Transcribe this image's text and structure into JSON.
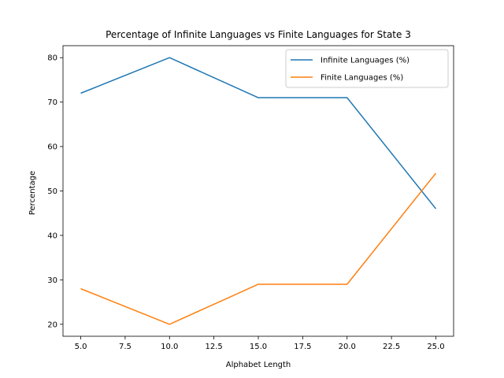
{
  "chart_data": {
    "type": "line",
    "title": "Percentage of Infinite Languages vs Finite Languages for State 3",
    "xlabel": "Alphabet Length",
    "ylabel": "Percentage",
    "x": [
      5,
      10,
      15,
      20,
      25
    ],
    "xlim": [
      4.0,
      26.0
    ],
    "ylim": [
      17.3,
      82.7
    ],
    "xticks": [
      5.0,
      7.5,
      10.0,
      12.5,
      15.0,
      17.5,
      20.0,
      22.5,
      25.0
    ],
    "yticks": [
      20,
      30,
      40,
      50,
      60,
      70,
      80
    ],
    "grid": false,
    "legend_position": "upper right",
    "series": [
      {
        "name": "Infinite Languages (%)",
        "color": "#1f77b4",
        "values": [
          72,
          80,
          71,
          71,
          46
        ]
      },
      {
        "name": "Finite Languages (%)",
        "color": "#ff7f0e",
        "values": [
          28,
          20,
          29,
          29,
          54
        ]
      }
    ]
  }
}
